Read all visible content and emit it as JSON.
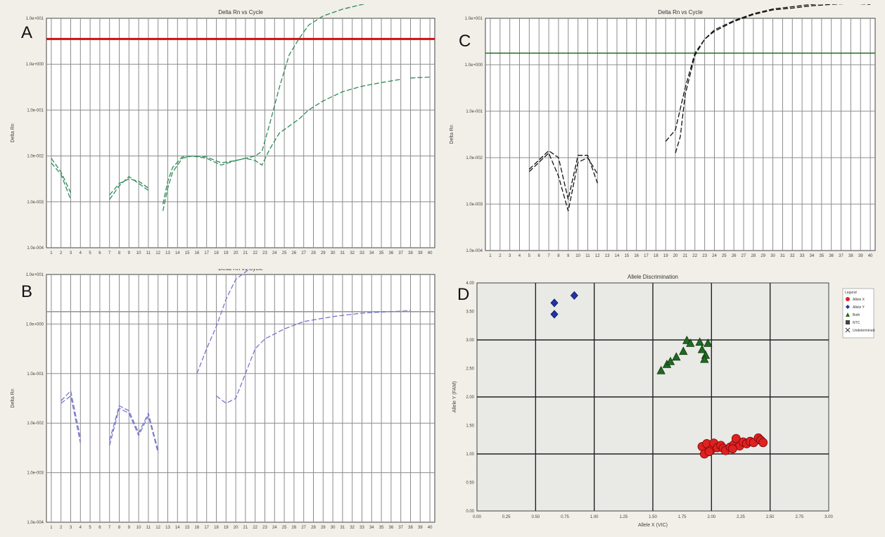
{
  "chart_data": [
    {
      "id": "A",
      "type": "line",
      "title": "Delta Rn vs Cycle",
      "ylabel": "Delta Rn",
      "letter": "A",
      "x_range": [
        1,
        40
      ],
      "y_ticks": [
        "1.0e+001",
        "1.0e+000",
        "1.0e-001",
        "1.0e-002",
        "1.0e-003",
        "1.0e-004"
      ],
      "log_decades": [
        -4,
        1
      ],
      "threshold_log": 0.55,
      "threshold_color": "#cc1111",
      "line_color": "#2e8b57",
      "series": [
        {
          "segments": [
            [
              [
                1,
                -2.15
              ],
              [
                2,
                -2.4
              ],
              [
                3,
                -2.95
              ]
            ],
            [
              [
                7,
                -2.95
              ],
              [
                8,
                -2.65
              ],
              [
                9,
                -2.45
              ],
              [
                10,
                -2.6
              ],
              [
                11,
                -2.75
              ]
            ],
            [
              [
                12.5,
                -3.2
              ],
              [
                13,
                -2.7
              ],
              [
                13.5,
                -2.35
              ],
              [
                14.5,
                -2.05
              ],
              [
                15.5,
                -2.0
              ],
              [
                17,
                -2.02
              ],
              [
                18.5,
                -2.15
              ],
              [
                20,
                -2.1
              ],
              [
                21,
                -2.05
              ],
              [
                22,
                -2.0
              ],
              [
                22.7,
                -1.9
              ],
              [
                23.5,
                -1.3
              ],
              [
                24.5,
                -0.5
              ],
              [
                25.5,
                0.2
              ],
              [
                26.5,
                0.55
              ],
              [
                27.5,
                0.85
              ],
              [
                29,
                1.05
              ],
              [
                31,
                1.2
              ],
              [
                33,
                1.3
              ],
              [
                35,
                1.37
              ],
              [
                37,
                1.4
              ]
            ],
            [
              [
                38,
                1.42
              ],
              [
                40,
                1.43
              ]
            ]
          ]
        },
        {
          "segments": [
            [
              [
                1,
                -2.05
              ],
              [
                2,
                -2.35
              ],
              [
                3,
                -2.8
              ]
            ],
            [
              [
                7,
                -2.85
              ],
              [
                8,
                -2.6
              ],
              [
                9,
                -2.5
              ],
              [
                10,
                -2.55
              ],
              [
                11,
                -2.7
              ]
            ],
            [
              [
                12.5,
                -3.05
              ],
              [
                13,
                -2.55
              ],
              [
                13.5,
                -2.25
              ],
              [
                14.5,
                -2.02
              ],
              [
                15.5,
                -2.0
              ],
              [
                17,
                -2.05
              ],
              [
                18.5,
                -2.2
              ],
              [
                20,
                -2.1
              ],
              [
                21,
                -2.05
              ],
              [
                22,
                -2.1
              ],
              [
                22.7,
                -2.2
              ],
              [
                23.5,
                -1.85
              ],
              [
                24.5,
                -1.5
              ],
              [
                25.5,
                -1.35
              ],
              [
                26.5,
                -1.2
              ],
              [
                27.5,
                -1.0
              ],
              [
                29,
                -0.8
              ],
              [
                31,
                -0.6
              ],
              [
                33,
                -0.48
              ],
              [
                35,
                -0.4
              ],
              [
                37,
                -0.33
              ]
            ],
            [
              [
                38,
                -0.3
              ],
              [
                40,
                -0.28
              ]
            ]
          ]
        }
      ]
    },
    {
      "id": "B",
      "type": "line",
      "title": "Delta Rn vs Cycle",
      "ylabel": "Delta Rn",
      "letter": "B",
      "x_range": [
        1,
        40
      ],
      "y_ticks": [
        "1.0e+001",
        "1.0e+000",
        "1.0e-001",
        "1.0e-002",
        "1.0e-003",
        "1.0e-004"
      ],
      "log_decades": [
        -4,
        1
      ],
      "threshold_log": 0.25,
      "threshold_color": "#999999",
      "line_color": "#7777cc",
      "series": [
        {
          "segments": [
            [
              [
                2,
                -1.55
              ],
              [
                3,
                -1.35
              ],
              [
                4,
                -2.3
              ]
            ],
            [
              [
                7,
                -2.35
              ],
              [
                8,
                -1.65
              ],
              [
                9,
                -1.75
              ],
              [
                10,
                -2.2
              ],
              [
                11,
                -1.8
              ],
              [
                12,
                -2.55
              ]
            ],
            [
              [
                16,
                -1.0
              ],
              [
                17,
                -0.5
              ],
              [
                18,
                -0.05
              ],
              [
                19,
                0.5
              ],
              [
                20,
                0.9
              ],
              [
                22,
                1.2
              ],
              [
                24,
                1.35
              ],
              [
                26,
                1.42
              ],
              [
                28,
                1.45
              ],
              [
                30,
                1.47
              ]
            ],
            [
              [
                36,
                1.48
              ],
              [
                37.5,
                1.48
              ]
            ]
          ]
        },
        {
          "segments": [
            [
              [
                2,
                -1.6
              ],
              [
                3,
                -1.45
              ],
              [
                4,
                -2.4
              ]
            ],
            [
              [
                7,
                -2.45
              ],
              [
                8,
                -1.7
              ],
              [
                9,
                -1.8
              ],
              [
                10,
                -2.25
              ],
              [
                11,
                -1.85
              ],
              [
                12,
                -2.6
              ]
            ],
            [
              [
                18,
                -1.45
              ],
              [
                19,
                -1.6
              ],
              [
                20,
                -1.5
              ],
              [
                21,
                -1.0
              ],
              [
                22,
                -0.5
              ],
              [
                23,
                -0.3
              ],
              [
                25,
                -0.1
              ],
              [
                27,
                0.05
              ],
              [
                30,
                0.15
              ],
              [
                33,
                0.22
              ],
              [
                36,
                0.25
              ],
              [
                38,
                0.27
              ]
            ]
          ]
        }
      ]
    },
    {
      "id": "C",
      "type": "line",
      "title": "Delta Rn vs Cycle",
      "ylabel": "Delta Rn",
      "letter": "C",
      "x_range": [
        1,
        40
      ],
      "y_ticks": [
        "1.0e+001",
        "1.0e+000",
        "1.0e-001",
        "1.0e-002",
        "1.0e-003",
        "1.0e-004"
      ],
      "log_decades": [
        -4,
        1
      ],
      "threshold_log": 0.25,
      "threshold_color": "#1c6b1c",
      "line_color": "#111111",
      "series": [
        {
          "segments": [
            [
              [
                5,
                -2.25
              ],
              [
                6,
                -2.05
              ],
              [
                7,
                -1.85
              ],
              [
                8,
                -2.0
              ],
              [
                9,
                -2.9
              ],
              [
                10,
                -1.95
              ],
              [
                11,
                -1.95
              ],
              [
                12,
                -2.55
              ]
            ],
            [
              [
                19,
                -1.65
              ],
              [
                20,
                -1.4
              ],
              [
                21,
                -0.5
              ],
              [
                22,
                0.25
              ],
              [
                23,
                0.55
              ],
              [
                24,
                0.75
              ],
              [
                26,
                0.95
              ],
              [
                28,
                1.1
              ],
              [
                30,
                1.2
              ],
              [
                32,
                1.25
              ],
              [
                34,
                1.3
              ],
              [
                36,
                1.33
              ],
              [
                38,
                1.35
              ],
              [
                40,
                1.38
              ]
            ]
          ]
        },
        {
          "segments": [
            [
              [
                5,
                -2.3
              ],
              [
                6,
                -2.1
              ],
              [
                7,
                -1.9
              ],
              [
                8,
                -2.4
              ],
              [
                9,
                -3.15
              ],
              [
                10,
                -2.1
              ],
              [
                11,
                -2.0
              ],
              [
                12,
                -2.35
              ]
            ],
            [
              [
                20,
                -1.9
              ],
              [
                20.5,
                -1.55
              ],
              [
                21,
                -0.65
              ],
              [
                22,
                0.2
              ],
              [
                23,
                0.55
              ],
              [
                24,
                0.72
              ],
              [
                26,
                0.93
              ],
              [
                28,
                1.08
              ],
              [
                30,
                1.18
              ],
              [
                32,
                1.22
              ],
              [
                34,
                1.27
              ],
              [
                36,
                1.3
              ],
              [
                38,
                1.32
              ],
              [
                40,
                1.3
              ]
            ]
          ]
        }
      ]
    },
    {
      "id": "D",
      "type": "scatter",
      "title": "Allele Discrimination",
      "xlabel": "Allele X (VIC)",
      "ylabel": "Allele Y (FAM)",
      "letter": "D",
      "xlim": [
        0,
        3.0
      ],
      "ylim": [
        0,
        4.0
      ],
      "x_ticks": [
        "0.00",
        "0.25",
        "0.50",
        "0.75",
        "1.00",
        "1.25",
        "1.50",
        "1.75",
        "2.00",
        "2.25",
        "2.50",
        "2.75",
        "3.00"
      ],
      "y_ticks": [
        "4.00",
        "3.50",
        "3.00",
        "2.50",
        "2.00",
        "1.50",
        "1.00",
        "0.50",
        "0.00"
      ],
      "legend": {
        "title": "Legend",
        "items": [
          {
            "label": "Allele X",
            "color": "#dd2222",
            "shape": "circle"
          },
          {
            "label": "Allele Y",
            "color": "#2233aa",
            "shape": "diamond"
          },
          {
            "label": "Both",
            "color": "#1f6b1f",
            "shape": "triangle"
          },
          {
            "label": "NTC",
            "color": "#444444",
            "shape": "square"
          },
          {
            "label": "Undetermined",
            "color": "#444444",
            "shape": "x"
          }
        ]
      },
      "series": [
        {
          "name": "Allele Y",
          "shape": "diamond",
          "color": "#2233aa",
          "points": [
            [
              0.66,
              3.65
            ],
            [
              0.66,
              3.45
            ],
            [
              0.83,
              3.78
            ]
          ]
        },
        {
          "name": "Both",
          "shape": "triangle",
          "color": "#1f6b1f",
          "points": [
            [
              1.57,
              2.46
            ],
            [
              1.62,
              2.57
            ],
            [
              1.65,
              2.62
            ],
            [
              1.7,
              2.7
            ],
            [
              1.76,
              2.8
            ],
            [
              1.79,
              2.99
            ],
            [
              1.82,
              2.94
            ],
            [
              1.9,
              2.96
            ],
            [
              1.92,
              2.83
            ],
            [
              1.95,
              2.73
            ],
            [
              1.97,
              2.94
            ],
            [
              1.94,
              2.66
            ]
          ]
        },
        {
          "name": "Allele X",
          "shape": "circle",
          "color": "#dd2222",
          "points": [
            [
              1.92,
              1.13
            ],
            [
              1.94,
              1.0
            ],
            [
              1.96,
              1.18
            ],
            [
              2.0,
              1.08
            ],
            [
              2.02,
              1.19
            ],
            [
              2.05,
              1.11
            ],
            [
              2.08,
              1.15
            ],
            [
              2.1,
              1.1
            ],
            [
              2.12,
              1.06
            ],
            [
              2.16,
              1.12
            ],
            [
              2.19,
              1.16
            ],
            [
              2.21,
              1.27
            ],
            [
              2.24,
              1.14
            ],
            [
              2.27,
              1.21
            ],
            [
              2.3,
              1.18
            ],
            [
              2.33,
              1.22
            ],
            [
              2.36,
              1.2
            ],
            [
              2.4,
              1.28
            ],
            [
              2.42,
              1.24
            ],
            [
              2.44,
              1.2
            ],
            [
              2.18,
              1.09
            ],
            [
              1.98,
              1.04
            ]
          ]
        }
      ]
    }
  ]
}
